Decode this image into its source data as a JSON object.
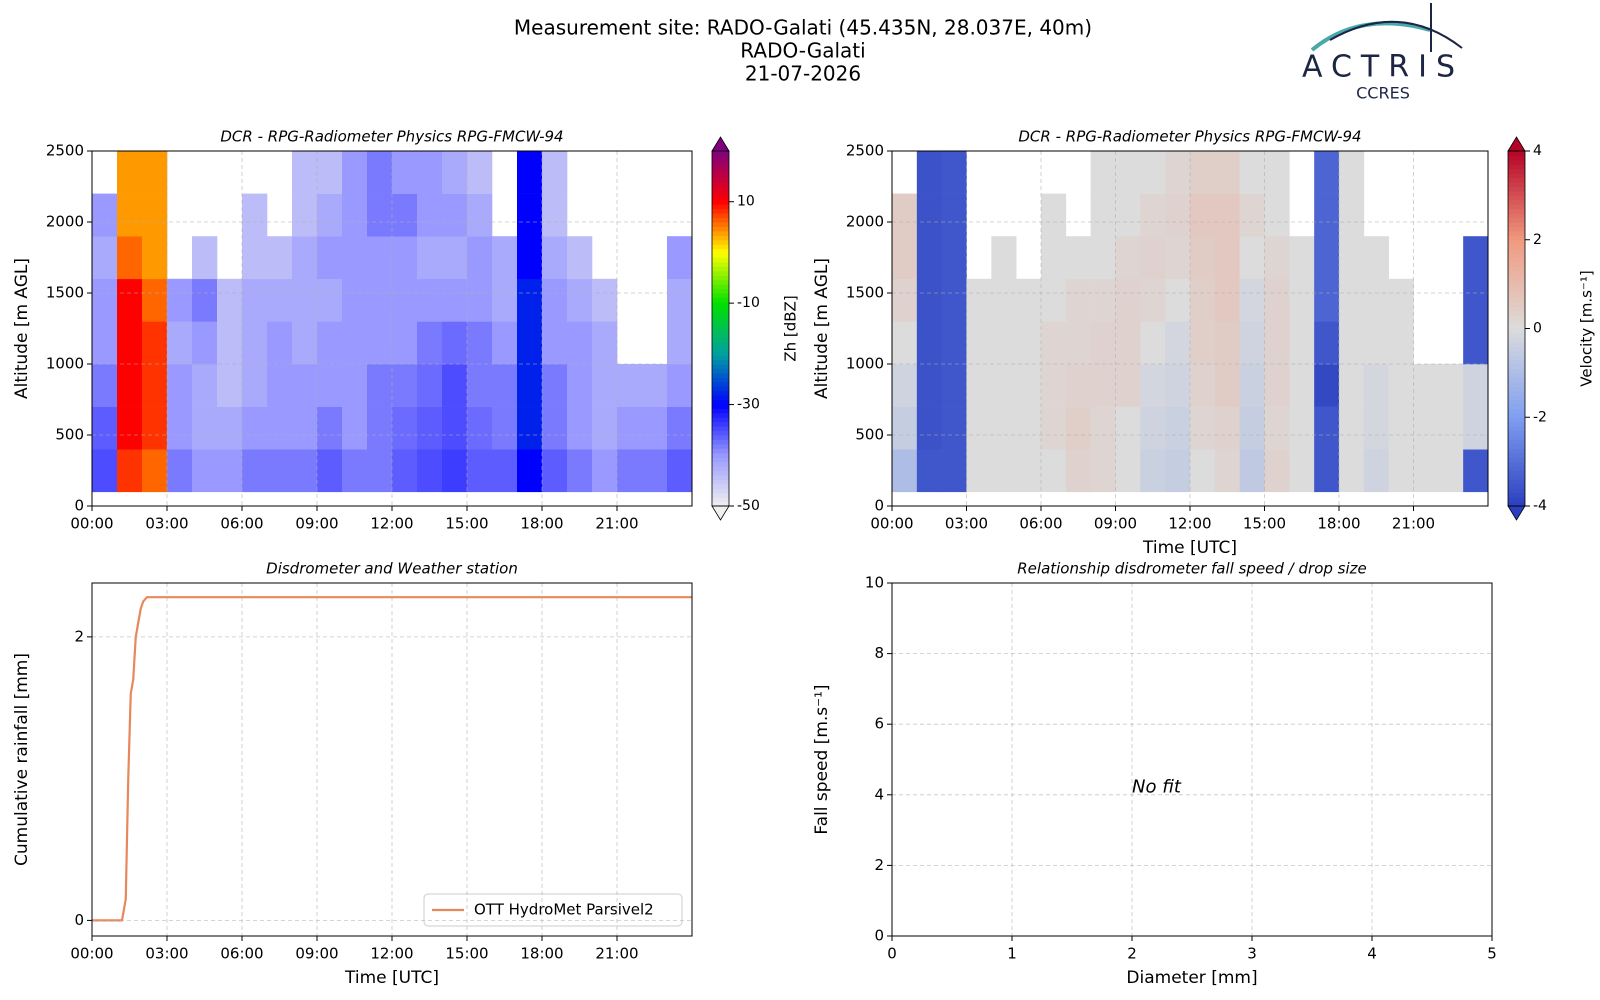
{
  "header": {
    "title": "Measurement site: RADO-Galati (45.435N, 28.037E, 40m)",
    "site": "RADO-Galati",
    "date": "21-07-2026"
  },
  "logo": {
    "name": "ACTRIS",
    "subtitle": "CCRES"
  },
  "chart_data": [
    {
      "type": "heatmap",
      "title": "DCR - RPG-Radiometer Physics RPG-FMCW-94",
      "y_label": "Altitude [m AGL]",
      "x_edges": [
        0,
        1,
        2,
        3,
        4,
        5,
        6,
        7,
        8,
        9,
        10,
        11,
        12,
        13,
        14,
        15,
        16,
        17,
        18,
        19,
        20,
        21,
        22,
        23,
        24
      ],
      "y_edges": [
        100,
        400,
        700,
        1000,
        1300,
        1600,
        1900,
        2200,
        2500
      ],
      "values": [
        [
          -35,
          8,
          6,
          -38,
          -40,
          -40,
          -38,
          -38,
          -38,
          -36,
          -38,
          -38,
          -36,
          -35,
          -34,
          -36,
          -36,
          -30,
          -36,
          -38,
          -40,
          -38,
          -38,
          -36
        ],
        [
          -36,
          10,
          8,
          -40,
          -42,
          -42,
          -40,
          -40,
          -40,
          -38,
          -40,
          -38,
          -37,
          -36,
          -35,
          -37,
          -38,
          -28,
          -38,
          -40,
          -42,
          -40,
          -40,
          -38
        ],
        [
          -38,
          10,
          8,
          -40,
          -42,
          -44,
          -42,
          -40,
          -40,
          -40,
          -40,
          -38,
          -38,
          -37,
          -35,
          -38,
          -38,
          -28,
          -38,
          -40,
          -42,
          -42,
          -42,
          -40
        ],
        [
          -40,
          10,
          8,
          -42,
          -40,
          -44,
          -42,
          -40,
          -42,
          -40,
          -40,
          -40,
          -40,
          -38,
          -37,
          -38,
          -40,
          -28,
          -40,
          -40,
          -42,
          null,
          null,
          -42
        ],
        [
          -40,
          10,
          6,
          -40,
          -38,
          -44,
          -42,
          -42,
          -42,
          -42,
          -40,
          -40,
          -40,
          -40,
          -40,
          -40,
          -42,
          -28,
          -40,
          -42,
          -44,
          null,
          null,
          -42
        ],
        [
          -42,
          6,
          4,
          null,
          -44,
          null,
          -44,
          -44,
          -42,
          -40,
          -40,
          -40,
          -40,
          -42,
          -42,
          -40,
          -42,
          -30,
          -42,
          -44,
          null,
          null,
          null,
          -40
        ],
        [
          -40,
          4,
          4,
          null,
          null,
          null,
          -44,
          null,
          -44,
          -42,
          -40,
          -38,
          -38,
          -40,
          -40,
          -42,
          null,
          -30,
          -44,
          null,
          null,
          null,
          null,
          null
        ],
        [
          null,
          4,
          4,
          null,
          null,
          null,
          null,
          null,
          -44,
          -44,
          -40,
          -38,
          -40,
          -40,
          -42,
          -44,
          null,
          -30,
          -44,
          null,
          null,
          null,
          null,
          null
        ]
      ],
      "xlim": [
        0,
        24
      ],
      "ylim": [
        0,
        2500
      ],
      "xticks": [
        {
          "value": 0,
          "label": "00:00"
        },
        {
          "value": 3,
          "label": "03:00"
        },
        {
          "value": 6,
          "label": "06:00"
        },
        {
          "value": 9,
          "label": "09:00"
        },
        {
          "value": 12,
          "label": "12:00"
        },
        {
          "value": 15,
          "label": "15:00"
        },
        {
          "value": 18,
          "label": "18:00"
        },
        {
          "value": 21,
          "label": "21:00"
        }
      ],
      "yticks": [
        0,
        500,
        1000,
        1500,
        2000,
        2500
      ],
      "grid": true,
      "zlim": [
        -50,
        20
      ],
      "zticks": [
        -50,
        -30,
        -10,
        10
      ],
      "colorbar_label": "Zh [dBZ]",
      "colormap": [
        "#f0f0f0",
        "#9999ff",
        "#0000ff",
        "#00a0a0",
        "#00e000",
        "#ffff00",
        "#ff0000",
        "#800080"
      ]
    },
    {
      "type": "heatmap",
      "title": "DCR - RPG-Radiometer Physics RPG-FMCW-94",
      "x_label": "Time [UTC]",
      "y_label": "Altitude [m AGL]",
      "x_edges": [
        0,
        1,
        2,
        3,
        4,
        5,
        6,
        7,
        8,
        9,
        10,
        11,
        12,
        13,
        14,
        15,
        16,
        17,
        18,
        19,
        20,
        21,
        22,
        23,
        24
      ],
      "y_edges": [
        100,
        400,
        700,
        1000,
        1300,
        1600,
        1900,
        2200,
        2500
      ],
      "values": [
        [
          -1,
          -3.5,
          -3.5,
          0,
          0,
          0,
          0,
          0.3,
          0.2,
          0,
          -0.4,
          -0.5,
          0,
          0.2,
          -0.6,
          0.3,
          0,
          -3.5,
          0,
          -0.3,
          0,
          0,
          0,
          -3.5
        ],
        [
          -0.5,
          -3.6,
          -3.5,
          0,
          0,
          0,
          0.2,
          0.4,
          0.2,
          0,
          -0.3,
          -0.4,
          0.2,
          0.3,
          -0.5,
          0.2,
          0,
          -3.5,
          0,
          -0.2,
          0,
          0,
          0,
          -0.3
        ],
        [
          -0.3,
          -3.6,
          -3.5,
          0,
          0,
          0,
          0.2,
          0.3,
          0.3,
          0.3,
          -0.2,
          -0.3,
          0.3,
          0.5,
          -0.4,
          0.3,
          0,
          -3.8,
          0,
          -0.2,
          0,
          0,
          0,
          -0.3
        ],
        [
          0,
          -3.6,
          -3.5,
          0,
          0,
          0,
          0.2,
          0.2,
          0.3,
          0.3,
          0,
          -0.2,
          0.4,
          0.5,
          -0.3,
          0.3,
          0,
          -3.5,
          0,
          0,
          0,
          null,
          null,
          -3.5
        ],
        [
          0.3,
          -3.6,
          -3.5,
          0,
          0,
          0,
          0,
          0.2,
          0.2,
          0.3,
          0.2,
          0,
          0.4,
          0.6,
          -0.2,
          0.3,
          0,
          -3.2,
          0,
          0,
          0,
          null,
          null,
          -3.5
        ],
        [
          0.5,
          -3.6,
          -3.5,
          null,
          0,
          null,
          0,
          0,
          0,
          0.2,
          0.3,
          0.2,
          0.5,
          0.6,
          0,
          0.2,
          0,
          -3.2,
          0,
          0,
          null,
          null,
          null,
          -3.5
        ],
        [
          0.5,
          -3.6,
          -3.5,
          null,
          null,
          null,
          0,
          null,
          0,
          0,
          0.2,
          0.3,
          0.6,
          0.6,
          0.2,
          0,
          null,
          -3.2,
          0,
          null,
          null,
          null,
          null,
          null
        ],
        [
          null,
          -3.6,
          -3.5,
          null,
          null,
          null,
          null,
          null,
          0,
          0,
          0,
          0.2,
          0.4,
          0.4,
          0,
          0,
          null,
          -3.2,
          0,
          null,
          null,
          null,
          null,
          null
        ]
      ],
      "xlim": [
        0,
        24
      ],
      "ylim": [
        0,
        2500
      ],
      "xticks": [
        {
          "value": 0,
          "label": "00:00"
        },
        {
          "value": 3,
          "label": "03:00"
        },
        {
          "value": 6,
          "label": "06:00"
        },
        {
          "value": 9,
          "label": "09:00"
        },
        {
          "value": 12,
          "label": "12:00"
        },
        {
          "value": 15,
          "label": "15:00"
        },
        {
          "value": 18,
          "label": "18:00"
        },
        {
          "value": 21,
          "label": "21:00"
        }
      ],
      "yticks": [
        0,
        500,
        1000,
        1500,
        2000,
        2500
      ],
      "grid": true,
      "zlim": [
        -4,
        4
      ],
      "zticks": [
        -4,
        -2,
        0,
        2,
        4
      ],
      "colorbar_label": "Velocity [m.s⁻¹]",
      "colormap": [
        "#2a3fbf",
        "#7f9ef0",
        "#dcdcdc",
        "#f09a7f",
        "#b40426"
      ]
    },
    {
      "type": "line",
      "title": "Disdrometer and Weather station",
      "x_label": "Time [UTC]",
      "y_label": "Cumulative rainfall [mm]",
      "x": [
        0,
        1.2,
        1.35,
        1.45,
        1.55,
        1.65,
        1.75,
        1.85,
        1.95,
        2.05,
        2.2,
        2.35,
        24
      ],
      "series": [
        {
          "name": "OTT HydroMet Parsivel2",
          "color": "#e8875a",
          "values": [
            0,
            0,
            0.15,
            1.0,
            1.6,
            1.7,
            2.0,
            2.1,
            2.2,
            2.25,
            2.28,
            2.28,
            2.28
          ]
        }
      ],
      "xlim": [
        0,
        24
      ],
      "ylim": [
        -0.11,
        2.38
      ],
      "xticks": [
        {
          "value": 0,
          "label": "00:00"
        },
        {
          "value": 3,
          "label": "03:00"
        },
        {
          "value": 6,
          "label": "06:00"
        },
        {
          "value": 9,
          "label": "09:00"
        },
        {
          "value": 12,
          "label": "12:00"
        },
        {
          "value": 15,
          "label": "15:00"
        },
        {
          "value": 18,
          "label": "18:00"
        },
        {
          "value": 21,
          "label": "21:00"
        }
      ],
      "yticks": [
        0,
        2
      ],
      "grid": true,
      "legend": "lower right"
    },
    {
      "type": "scatter",
      "title": "Relationship disdrometer fall speed / drop size",
      "x_label": "Diameter [mm]",
      "y_label": "Fall speed [m.s⁻¹]",
      "annotation": "No fit",
      "xlim": [
        0,
        5
      ],
      "ylim": [
        0,
        10
      ],
      "xticks": [
        0,
        1,
        2,
        3,
        4,
        5
      ],
      "yticks": [
        0,
        2,
        4,
        6,
        8,
        10
      ],
      "grid": true
    }
  ]
}
